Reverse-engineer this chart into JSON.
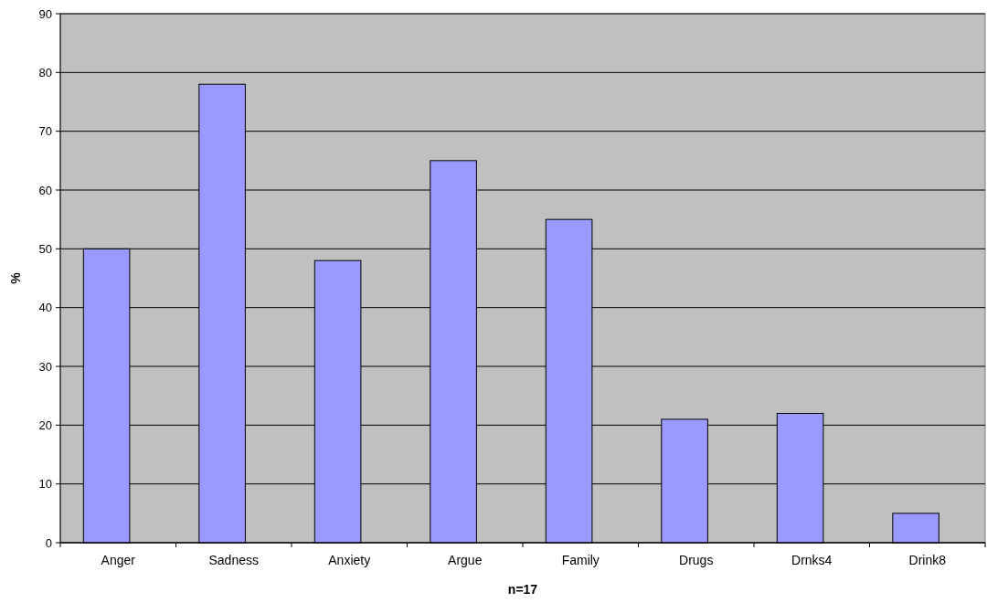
{
  "chart_data": {
    "type": "bar",
    "xlabel": "n=17",
    "ylabel": "%",
    "categories": [
      "Anger",
      "Sadness",
      "Anxiety",
      "Argue",
      "Family",
      "Drugs",
      "Drnks4",
      "Drink8"
    ],
    "values": [
      50,
      78,
      48,
      65,
      55,
      21,
      22,
      5
    ],
    "color": "#9999ff",
    "ylim": [
      0,
      90
    ],
    "yticks": [
      0,
      10,
      20,
      30,
      40,
      50,
      60,
      70,
      80,
      90
    ],
    "grid": "y"
  }
}
